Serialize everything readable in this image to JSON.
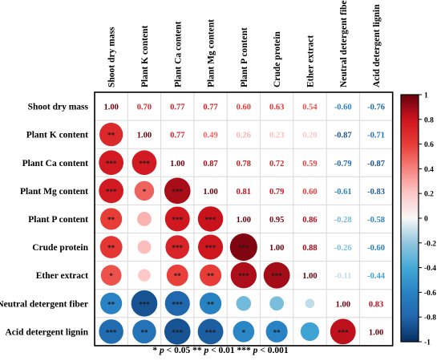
{
  "chart_data": {
    "type": "heatmap",
    "variables": [
      "Shoot dry mass",
      "Plant K content",
      "Plant Ca content",
      "Plant Mg content",
      "Plant P content",
      "Crude protein",
      "Ether extract",
      "Neutral detergent fiber",
      "Acid detergent lignin"
    ],
    "matrix": [
      [
        1.0,
        0.7,
        0.77,
        0.77,
        0.6,
        0.63,
        0.54,
        -0.6,
        -0.76
      ],
      [
        0.7,
        1.0,
        0.77,
        0.49,
        0.26,
        0.23,
        0.2,
        -0.87,
        -0.71
      ],
      [
        0.77,
        0.77,
        1.0,
        0.87,
        0.78,
        0.72,
        0.59,
        -0.79,
        -0.87
      ],
      [
        0.77,
        0.49,
        0.87,
        1.0,
        0.81,
        0.79,
        0.6,
        -0.61,
        -0.83
      ],
      [
        0.6,
        0.26,
        0.78,
        0.81,
        1.0,
        0.95,
        0.86,
        -0.28,
        -0.58
      ],
      [
        0.63,
        0.23,
        0.72,
        0.79,
        0.95,
        1.0,
        0.88,
        -0.26,
        -0.6
      ],
      [
        0.54,
        0.2,
        0.59,
        0.6,
        0.86,
        0.88,
        1.0,
        -0.11,
        -0.44
      ],
      [
        -0.6,
        -0.87,
        -0.79,
        -0.61,
        -0.28,
        -0.26,
        -0.11,
        1.0,
        0.83
      ],
      [
        -0.76,
        -0.71,
        -0.87,
        -0.83,
        -0.58,
        -0.6,
        -0.44,
        0.83,
        1.0
      ]
    ],
    "significance": [
      [
        "",
        "",
        "",
        "",
        "",
        "",
        "",
        "",
        ""
      ],
      [
        "**",
        "",
        "",
        "",
        "",
        "",
        "",
        "",
        ""
      ],
      [
        "***",
        "***",
        "",
        "",
        "",
        "",
        "",
        "",
        ""
      ],
      [
        "***",
        "*",
        "***",
        "",
        "",
        "",
        "",
        "",
        ""
      ],
      [
        "**",
        "",
        "***",
        "***",
        "",
        "",
        "",
        "",
        ""
      ],
      [
        "**",
        "",
        "***",
        "***",
        "***",
        "",
        "",
        "",
        ""
      ],
      [
        "*",
        "",
        "**",
        "**",
        "***",
        "***",
        "",
        "",
        ""
      ],
      [
        "**",
        "***",
        "***",
        "**",
        "",
        "",
        "",
        "",
        ""
      ],
      [
        "***",
        "**",
        "***",
        "***",
        "*",
        "**",
        "",
        "***",
        ""
      ]
    ],
    "colorbar": {
      "ticks": [
        "1",
        "0.8",
        "0.6",
        "0.4",
        "0.2",
        "0",
        "-0.2",
        "-0.4",
        "-0.6",
        "-0.8",
        "-1"
      ],
      "range": [
        -1,
        1
      ],
      "placement": "right"
    },
    "lower_triangle": "circles",
    "upper_triangle": "numbers"
  },
  "footnote": {
    "p1": "p",
    "t1": " < 0.05 ** ",
    "p2": "p",
    "t2": " < 0.01 *** ",
    "p3": "p",
    "t3": " < 0.001",
    "first_star": "* "
  }
}
